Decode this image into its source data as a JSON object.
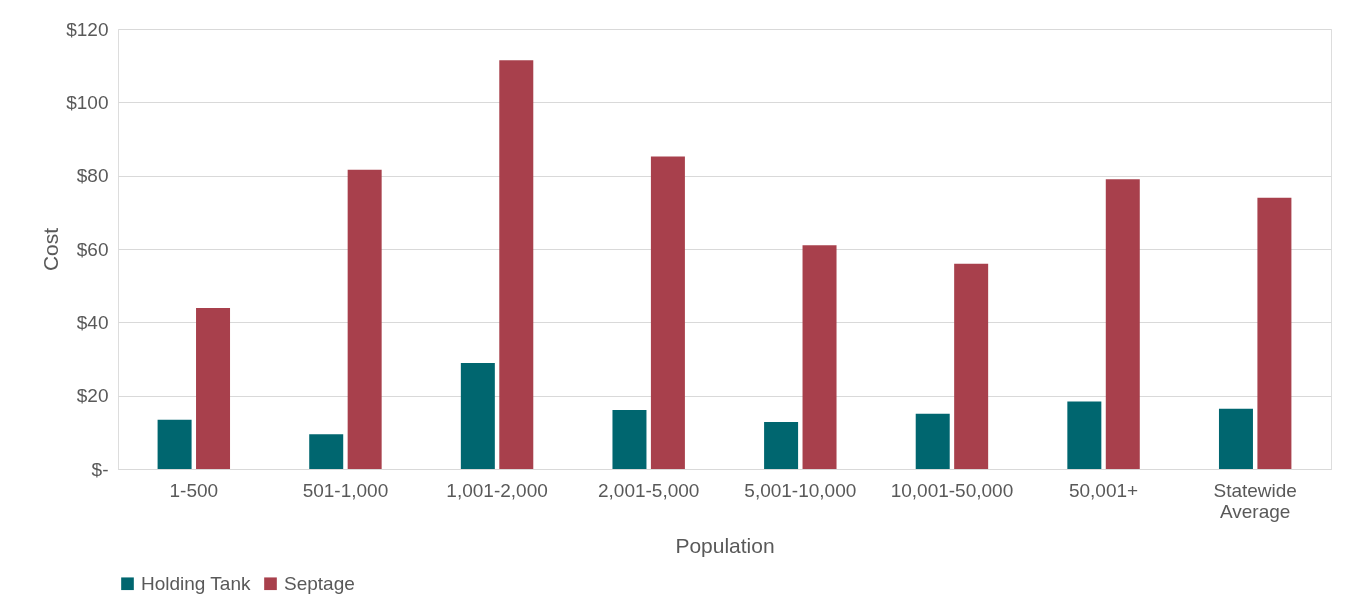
{
  "chart_data": {
    "type": "bar",
    "xlabel": "Population",
    "ylabel": "Cost",
    "categories": [
      "1-500",
      "501-1,000",
      "1,001-2,000",
      "2,001-5,000",
      "5,001-10,000",
      "10,001-50,000",
      "50,001+",
      "Statewide Average"
    ],
    "series": [
      {
        "name": "Holding Tank",
        "color": "#00666f",
        "values": [
          13.4,
          9.5,
          28.9,
          16.1,
          12.8,
          15.1,
          18.4,
          16.4
        ]
      },
      {
        "name": "Septage",
        "color": "#a8404c",
        "values": [
          43.9,
          81.6,
          111.5,
          85.2,
          61,
          56,
          79,
          74
        ]
      }
    ],
    "ylim": [
      0,
      120
    ],
    "yticks": [
      {
        "value": 0,
        "label": "$-"
      },
      {
        "value": 20,
        "label": "$20"
      },
      {
        "value": 40,
        "label": "$40"
      },
      {
        "value": 60,
        "label": "$60"
      },
      {
        "value": 80,
        "label": "$80"
      },
      {
        "value": 100,
        "label": "$100"
      },
      {
        "value": 120,
        "label": "$120"
      }
    ],
    "grid": "y",
    "legend": "bottom"
  }
}
